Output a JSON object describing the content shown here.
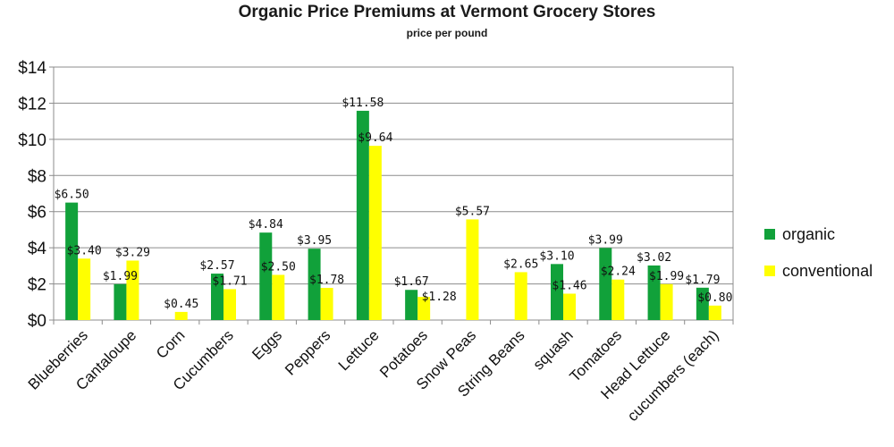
{
  "chart_data": {
    "type": "bar",
    "title": "Organic Price Premiums at Vermont Grocery Stores",
    "subtitle": "price per pound",
    "xlabel": "",
    "ylabel": "",
    "ylim": [
      0,
      14
    ],
    "yticks": [
      0,
      2,
      4,
      6,
      8,
      10,
      12,
      14
    ],
    "ytick_labels": [
      "$0",
      "$2",
      "$4",
      "$6",
      "$8",
      "$10",
      "$12",
      "$14"
    ],
    "grid": true,
    "legend_position": "right",
    "categories": [
      "Blueberries",
      "Cantaloupe",
      "Corn",
      "Cucumbers",
      "Eggs",
      "Peppers",
      "Lettuce",
      "Potatoes",
      "Snow Peas",
      "String Beans",
      "squash",
      "Tomatoes",
      "Head Lettuce",
      "cucumbers (each)"
    ],
    "series": [
      {
        "name": "organic",
        "color": "#11a13a",
        "values": [
          6.5,
          1.99,
          null,
          2.57,
          4.84,
          3.95,
          11.58,
          1.67,
          null,
          null,
          3.1,
          3.99,
          3.02,
          1.79
        ],
        "labels": [
          "$6.50",
          "$1.99",
          null,
          "$2.57",
          "$4.84",
          "$3.95",
          "$11.58",
          "$1.67",
          null,
          null,
          "$3.10",
          "$3.99",
          "$3.02",
          "$1.79"
        ]
      },
      {
        "name": "conventional",
        "color": "#ffff00",
        "values": [
          3.4,
          3.29,
          0.45,
          1.71,
          2.5,
          1.78,
          9.64,
          1.28,
          5.57,
          2.65,
          1.46,
          2.24,
          1.99,
          0.8
        ],
        "labels": [
          "$3.40",
          "$3.29",
          "$0.45",
          "$1.71",
          "$2.50",
          "$1.78",
          "$9.64",
          "$1.28",
          "$5.57",
          "$2.65",
          "$1.46",
          "$2.24",
          "$1.99",
          "$0.80"
        ]
      }
    ]
  }
}
